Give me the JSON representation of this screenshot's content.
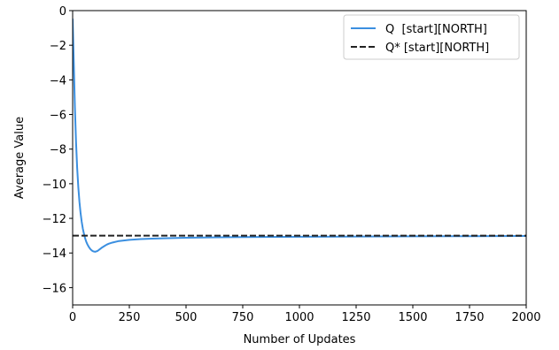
{
  "chart_data": {
    "type": "line",
    "title": "",
    "xlabel": "Number of Updates",
    "ylabel": "Average Value",
    "xlim": [
      0,
      2000
    ],
    "ylim": [
      -17,
      0
    ],
    "xticks": [
      0,
      250,
      500,
      750,
      1000,
      1250,
      1500,
      1750,
      2000
    ],
    "yticks": [
      0,
      -2,
      -4,
      -6,
      -8,
      -10,
      -12,
      -14,
      -16
    ],
    "grid": false,
    "legend_position": "top-right",
    "series": [
      {
        "name": "Q  [start][NORTH]",
        "style": "solid",
        "color": "#3b8fe0",
        "x": [
          0,
          5,
          10,
          15,
          20,
          25,
          30,
          35,
          40,
          45,
          50,
          55,
          60,
          65,
          70,
          75,
          80,
          85,
          90,
          95,
          100,
          110,
          120,
          130,
          140,
          150,
          160,
          175,
          200,
          250,
          300,
          350,
          400,
          500,
          600,
          750,
          1000,
          1250,
          1500,
          1750,
          2000
        ],
        "y": [
          -0.5,
          -3.0,
          -5.6,
          -7.6,
          -9.1,
          -10.2,
          -11.05,
          -11.7,
          -12.2,
          -12.6,
          -12.9,
          -13.15,
          -13.35,
          -13.5,
          -13.62,
          -13.72,
          -13.8,
          -13.86,
          -13.9,
          -13.92,
          -13.93,
          -13.88,
          -13.78,
          -13.68,
          -13.6,
          -13.52,
          -13.46,
          -13.4,
          -13.32,
          -13.24,
          -13.2,
          -13.17,
          -13.15,
          -13.12,
          -13.1,
          -13.08,
          -13.06,
          -13.05,
          -13.04,
          -13.03,
          -13.02
        ]
      },
      {
        "name": "Q* [start][NORTH]",
        "style": "dashed",
        "color": "#222222",
        "x": [
          0,
          2000
        ],
        "y": [
          -13,
          -13
        ]
      }
    ]
  }
}
